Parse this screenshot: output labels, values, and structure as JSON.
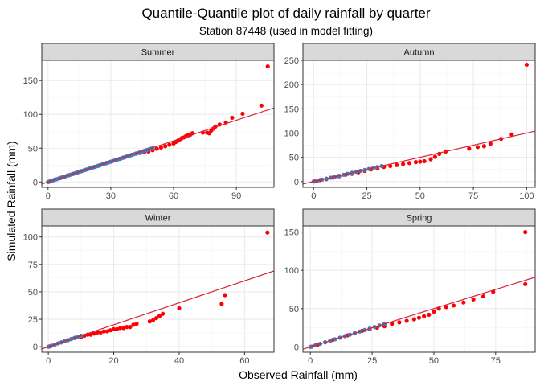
{
  "chart_data": {
    "type": "scatter",
    "title": "Quantile-Quantile plot of daily rainfall by quarter",
    "subtitle": "Station 87448 (used in model fitting)",
    "xlabel": "Observed Rainfall (mm)",
    "ylabel": "Simulated Rainfall (mm)",
    "grid": true,
    "colors": {
      "low": "#3a7fc1",
      "high": "#ff0000",
      "line": "#d6233a",
      "strip": "#d9d9d9",
      "grid": "#ebebeb"
    },
    "panels": [
      {
        "name": "Summer",
        "xlim": [
          -3,
          108
        ],
        "ylim": [
          -8,
          180
        ],
        "xticks": [
          0,
          30,
          60,
          90
        ],
        "yticks": [
          0,
          50,
          100,
          150
        ],
        "line": {
          "x": [
            -3,
            108
          ],
          "y": [
            -3.1,
            109.6
          ]
        },
        "low_series": {
          "x": [
            0,
            1,
            2,
            3,
            4,
            5,
            6,
            7,
            8,
            9,
            10,
            11,
            12,
            13,
            14,
            15,
            16,
            17,
            18,
            19,
            20,
            21,
            22,
            23,
            24,
            25,
            26,
            27,
            28,
            29,
            30,
            31,
            32,
            33,
            34,
            35,
            36,
            37,
            38,
            39,
            40,
            41,
            42,
            43,
            44,
            45,
            46,
            47,
            48,
            49,
            50
          ],
          "y": [
            0,
            1,
            2,
            3,
            4,
            5,
            6,
            7,
            8,
            9,
            10,
            11,
            12,
            13,
            14,
            15,
            16,
            17,
            18,
            19,
            20,
            21,
            22,
            23,
            24,
            25,
            26,
            27,
            28,
            29,
            30,
            31,
            32,
            33,
            34,
            35,
            36,
            37,
            38,
            39,
            40,
            41,
            42,
            43,
            44,
            45,
            46,
            47,
            48,
            49,
            50
          ]
        },
        "high_series": {
          "x": [
            0.5,
            1,
            2,
            3,
            4,
            5,
            6,
            7,
            8,
            9,
            10,
            12,
            14,
            16,
            18,
            20,
            22,
            24,
            26,
            28,
            30,
            32,
            34,
            36,
            38,
            40,
            42,
            44,
            46,
            48,
            50,
            52,
            54,
            56,
            58,
            60,
            61,
            62,
            63,
            64,
            65,
            66,
            67,
            68,
            69,
            74,
            76,
            77,
            78,
            79,
            80,
            82,
            85,
            88,
            93,
            102
          ],
          "y": [
            0.3,
            1,
            2,
            3,
            4,
            5,
            6,
            7,
            8,
            9,
            10,
            12,
            14,
            16,
            18,
            20,
            22,
            24,
            26,
            28,
            30,
            32,
            34,
            36,
            38,
            40,
            42,
            43,
            44,
            45,
            47,
            49,
            51,
            53,
            55,
            57,
            59,
            61,
            63,
            65,
            66,
            68,
            69,
            70,
            72,
            73,
            73,
            72,
            76,
            79,
            82,
            85,
            88,
            95,
            101,
            113
          ]
        },
        "outlier": {
          "x": 105,
          "y": 171
        }
      },
      {
        "name": "Autumn",
        "xlim": [
          -5,
          104
        ],
        "ylim": [
          -12,
          250
        ],
        "xticks": [
          0,
          25,
          50,
          75,
          100
        ],
        "yticks": [
          0,
          50,
          100,
          150,
          200,
          250
        ],
        "line": {
          "x": [
            -5,
            104
          ],
          "y": [
            -5,
            104
          ]
        },
        "low_series": {
          "x": [
            0,
            2,
            4,
            6,
            8,
            10,
            12,
            14,
            16,
            18,
            20,
            22,
            24,
            26,
            28,
            30,
            32
          ],
          "y": [
            0,
            2,
            4,
            6,
            8,
            10,
            12,
            14,
            16,
            18,
            20,
            22,
            24,
            26,
            28,
            30,
            32
          ]
        },
        "high_series": {
          "x": [
            0.5,
            3,
            6,
            9,
            12,
            15,
            18,
            21,
            24,
            27,
            30,
            33,
            36,
            39,
            42,
            45,
            48,
            50,
            52,
            55,
            57,
            59,
            62,
            73,
            77,
            80,
            83,
            88,
            93
          ],
          "y": [
            0.3,
            3,
            5,
            8,
            11,
            14,
            16,
            19,
            22,
            25,
            27,
            30,
            32,
            34,
            36,
            38,
            40,
            41,
            42,
            46,
            51,
            57,
            62,
            68,
            71,
            73,
            78,
            88,
            97
          ]
        },
        "outlier": {
          "x": 100,
          "y": 241
        }
      },
      {
        "name": "Winter",
        "xlim": [
          -2,
          69
        ],
        "ylim": [
          -5,
          110
        ],
        "xticks": [
          0,
          20,
          40,
          60
        ],
        "yticks": [
          0,
          25,
          50,
          75,
          100
        ],
        "line": {
          "x": [
            -2,
            69
          ],
          "y": [
            -2,
            69
          ]
        },
        "low_series": {
          "x": [
            0,
            1,
            2,
            3,
            4,
            5,
            6,
            7,
            8,
            9,
            10
          ],
          "y": [
            0,
            1,
            2,
            3,
            4,
            5,
            6,
            7,
            8,
            9,
            10
          ]
        },
        "high_series": {
          "x": [
            0.3,
            1,
            2,
            3,
            4,
            5,
            6,
            7,
            8,
            9,
            10,
            11,
            12,
            13,
            14,
            15,
            16,
            17,
            18,
            19,
            20,
            21,
            22,
            23,
            24,
            25,
            26,
            27,
            31,
            32,
            33,
            34,
            35,
            40,
            53,
            54
          ],
          "y": [
            0.2,
            1,
            2,
            3,
            4,
            5,
            6,
            7,
            8,
            9,
            9,
            10,
            11,
            11,
            12,
            13,
            13,
            14,
            14,
            15,
            16,
            16,
            17,
            17,
            18,
            18,
            20,
            21,
            23,
            24,
            26,
            28,
            30,
            35,
            39,
            47
          ]
        },
        "outlier": {
          "x": 67,
          "y": 104
        }
      },
      {
        "name": "Spring",
        "xlim": [
          -3,
          91
        ],
        "ylim": [
          -7,
          158
        ],
        "xticks": [
          0,
          25,
          50,
          75
        ],
        "yticks": [
          0,
          50,
          100,
          150
        ],
        "line": {
          "x": [
            -3,
            91
          ],
          "y": [
            -3,
            91
          ]
        },
        "low_series": {
          "x": [
            0,
            2,
            4,
            6,
            8,
            10,
            12,
            14,
            16,
            18,
            20,
            22,
            24,
            26,
            28,
            30
          ],
          "y": [
            0,
            2,
            4,
            6,
            8,
            10,
            12,
            14,
            16,
            18,
            20,
            22,
            24,
            26,
            28,
            30
          ]
        },
        "high_series": {
          "x": [
            0.5,
            3,
            6,
            9,
            12,
            15,
            18,
            21,
            24,
            27,
            30,
            33,
            36,
            39,
            42,
            44,
            46,
            48,
            50,
            52,
            55,
            58,
            62,
            66,
            70,
            74,
            87
          ],
          "y": [
            0.3,
            3,
            6,
            9,
            12,
            15,
            18,
            21,
            23,
            25,
            27,
            30,
            32,
            34,
            36,
            38,
            40,
            42,
            46,
            50,
            52,
            54,
            58,
            62,
            66,
            72,
            82
          ]
        },
        "outlier": {
          "x": 87,
          "y": 150
        }
      }
    ]
  }
}
